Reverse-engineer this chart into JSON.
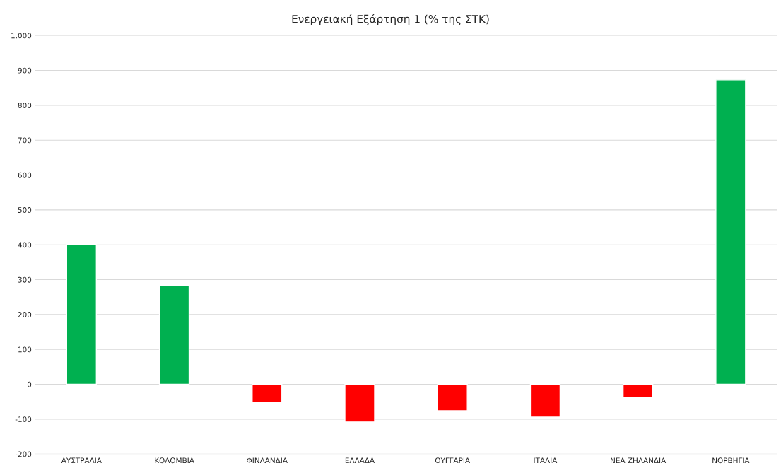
{
  "chart_data": {
    "type": "bar",
    "title": "Ενεργειακή Εξάρτηση 1 (% της ΣΤΚ)",
    "categories": [
      "ΑΥΣΤΡΑΛΙΑ",
      "ΚΟΛΟΜΒΙΑ",
      "ΦΙΝΛΑΝΔΙΑ",
      "ΕΛΛΑΔΑ",
      "ΟΥΓΓΑΡΙΑ",
      "ΙΤΑΛΙΑ",
      "ΝΕΑ ΖΗΛΑΝΔΙΑ",
      "ΝΟΡΒΗΓΙΑ"
    ],
    "values": [
      401,
      282,
      -51,
      -108,
      -76,
      -94,
      -39,
      873
    ],
    "colors": [
      "#00b050",
      "#00b050",
      "#ff0000",
      "#ff0000",
      "#ff0000",
      "#ff0000",
      "#ff0000",
      "#00b050"
    ],
    "ylim": [
      -200,
      1000
    ],
    "yticks": [
      -200,
      -100,
      0,
      100,
      200,
      300,
      400,
      500,
      600,
      700,
      800,
      900,
      {
        "value": 1000,
        "label": "1.000"
      }
    ],
    "grid": "y",
    "legend": false
  }
}
